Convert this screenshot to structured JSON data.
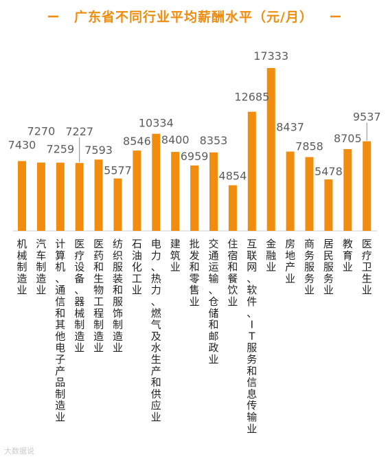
{
  "colors": {
    "bar": "#F08C0E",
    "title": "#F08C0E",
    "axis": "#CFCFCF"
  },
  "watermark": "大数据说",
  "chart_data": {
    "type": "bar",
    "title": "广东省不同行业平均薪酬水平（元/月）",
    "xlabel": "",
    "ylabel": "",
    "ylim": [
      0,
      18000
    ],
    "grid": false,
    "legend": "none",
    "categories": [
      "机械制造业",
      "汽车制造业",
      "计算机、通信和其他电子产品制造业",
      "医疗设备、器械制造业",
      "医药和生物工程制造业",
      "纺织服装和服饰制造业",
      "石油化工业",
      "电力、热力、燃气及水生产和供应业",
      "建筑业",
      "批发和零售业",
      "交通运输、仓储和邮政业",
      "住宿和餐饮业",
      "互联网、软件、IT服务和信息传输业",
      "金融业",
      "房地产业",
      "商务服务业",
      "居民服务业",
      "教育业",
      "医疗卫生业"
    ],
    "values": [
      7430,
      7270,
      7259,
      7227,
      7593,
      5577,
      8546,
      10334,
      8400,
      6959,
      8353,
      4854,
      12685,
      17333,
      8437,
      7858,
      5478,
      8705,
      9537
    ]
  }
}
